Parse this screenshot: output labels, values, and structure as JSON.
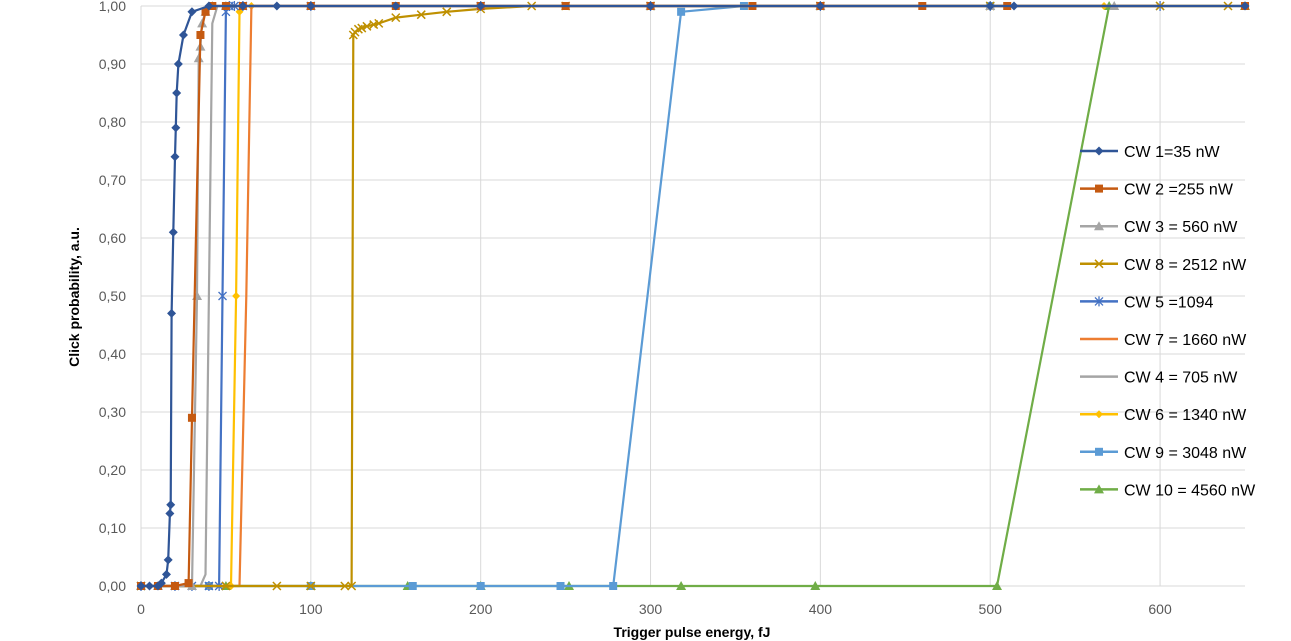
{
  "chart_data": {
    "type": "scatter",
    "xlabel": "Trigger pulse energy, fJ",
    "ylabel": "Click probability, a.u.",
    "xlim": [
      0,
      650
    ],
    "ylim": [
      0,
      1
    ],
    "x_ticks": [
      0,
      100,
      200,
      300,
      400,
      500,
      600
    ],
    "y_ticks": [
      "0,00",
      "0,10",
      "0,20",
      "0,30",
      "0,40",
      "0,50",
      "0,60",
      "0,70",
      "0,80",
      "0,90",
      "1,00"
    ],
    "y_tick_values": [
      0,
      0.1,
      0.2,
      0.3,
      0.4,
      0.5,
      0.6,
      0.7,
      0.8,
      0.9,
      1.0
    ],
    "grid": "horizontal and vertical",
    "legend_position": "right",
    "series": [
      {
        "name": "CW 1=35 nW",
        "color": "#2F5597",
        "marker": "diamond",
        "x": [
          0,
          5,
          10,
          12,
          15,
          16,
          17,
          17.5,
          18,
          19,
          20,
          20.5,
          21,
          22,
          25,
          30,
          40,
          60,
          80,
          100,
          150,
          200,
          300,
          400,
          500,
          514,
          650
        ],
        "y": [
          0,
          0,
          0,
          0.005,
          0.02,
          0.045,
          0.125,
          0.14,
          0.47,
          0.61,
          0.74,
          0.79,
          0.85,
          0.9,
          0.95,
          0.99,
          1.0,
          1.0,
          1.0,
          1.0,
          1.0,
          1.0,
          1.0,
          1.0,
          1.0,
          1.0,
          1.0
        ]
      },
      {
        "name": "CW 2 =255 nW",
        "color": "#C55A11",
        "marker": "square",
        "x": [
          0,
          10,
          20,
          28,
          30,
          35,
          38,
          42,
          50,
          60,
          100,
          150,
          200,
          250,
          300,
          360,
          400,
          460,
          510,
          650
        ],
        "y": [
          0,
          0,
          0,
          0.005,
          0.29,
          0.95,
          0.99,
          1.0,
          1.0,
          1.0,
          1.0,
          1.0,
          1.0,
          1.0,
          1.0,
          1.0,
          1.0,
          1.0,
          1.0,
          1.0
        ]
      },
      {
        "name": "CW 3 = 560 nW",
        "color": "#A5A5A5",
        "marker": "triangle",
        "x": [
          0,
          10,
          20,
          30,
          33,
          34,
          35,
          36,
          38,
          42,
          50,
          100,
          200,
          300,
          400,
          500,
          573
        ],
        "y": [
          0,
          0,
          0,
          0,
          0.5,
          0.91,
          0.93,
          0.97,
          0.99,
          1.0,
          1.0,
          1.0,
          1.0,
          1.0,
          1.0,
          1.0,
          1.0
        ]
      },
      {
        "name": "CW 8 = 2512 nW",
        "color": "#BF9000",
        "marker": "x",
        "x": [
          0,
          50,
          80,
          100,
          120,
          124,
          125,
          126,
          128,
          130,
          133,
          137,
          140,
          150,
          165,
          180,
          200,
          230,
          250,
          300,
          400,
          500,
          600,
          640
        ],
        "y": [
          0,
          0,
          0,
          0,
          0,
          0,
          0.95,
          0.955,
          0.96,
          0.962,
          0.965,
          0.968,
          0.97,
          0.98,
          0.985,
          0.99,
          0.995,
          1.0,
          1.0,
          1.0,
          1.0,
          1.0,
          1.0,
          1.0
        ]
      },
      {
        "name": "CW 5 =1094",
        "color": "#4472C4",
        "marker": "asterisk",
        "x": [
          0,
          20,
          30,
          40,
          46,
          48,
          50,
          52,
          55,
          60,
          100,
          200,
          300,
          400,
          500,
          600
        ],
        "y": [
          0,
          0,
          0,
          0,
          0,
          0.5,
          0.99,
          1.0,
          1.0,
          1.0,
          1.0,
          1.0,
          1.0,
          1.0,
          1.0,
          1.0
        ]
      },
      {
        "name": "CW 7 = 1660 nW",
        "color": "#ED7D31",
        "marker": "none",
        "x": [
          0,
          30,
          50,
          58,
          62,
          65,
          70,
          100,
          200,
          300,
          400,
          500,
          600
        ],
        "y": [
          0,
          0,
          0,
          0,
          0.5,
          1.0,
          1.0,
          1.0,
          1.0,
          1.0,
          1.0,
          1.0,
          1.0
        ]
      },
      {
        "name": "CW 4 = 705 nW",
        "color": "#A5A5A5",
        "marker": "none",
        "x": [
          0,
          20,
          35,
          38,
          40,
          42,
          45,
          50,
          100,
          200,
          300,
          400,
          500,
          600
        ],
        "y": [
          0,
          0,
          0,
          0.02,
          0.5,
          0.97,
          1.0,
          1.0,
          1.0,
          1.0,
          1.0,
          1.0,
          1.0,
          1.0
        ]
      },
      {
        "name": "CW 6 = 1340 nW",
        "color": "#FFC000",
        "marker": "circle",
        "x": [
          0,
          20,
          40,
          53,
          56,
          58,
          60,
          65,
          80,
          100,
          200,
          300,
          400,
          500,
          567
        ],
        "y": [
          0,
          0,
          0,
          0,
          0.5,
          0.99,
          1.0,
          1.0,
          1.0,
          1.0,
          1.0,
          1.0,
          1.0,
          1.0,
          1.0
        ]
      },
      {
        "name": "CW 9 = 3048 nW",
        "color": "#5B9BD5",
        "marker": "square",
        "x": [
          0,
          40,
          100,
          160,
          200,
          247,
          278,
          318,
          355,
          400,
          500,
          650
        ],
        "y": [
          0,
          0,
          0,
          0,
          0,
          0,
          0,
          0.99,
          1.0,
          1.0,
          1.0,
          1.0
        ]
      },
      {
        "name": "CW 10 = 4560 nW",
        "color": "#70AD47",
        "marker": "triangle",
        "x": [
          0,
          50,
          100,
          157,
          200,
          252,
          318,
          397,
          504,
          570,
          650
        ],
        "y": [
          0,
          0,
          0,
          0,
          0,
          0,
          0,
          0,
          0,
          1.0,
          1.0
        ]
      }
    ]
  }
}
